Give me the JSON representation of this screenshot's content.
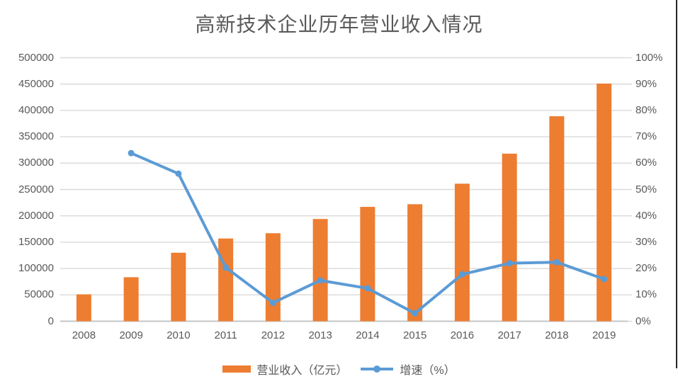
{
  "title": "高新技术企业历年营业收入情况",
  "legend": {
    "revenue_label": "营业收入（亿元）",
    "growth_label": "增速（%）"
  },
  "colors": {
    "bar": "#ED7D31",
    "line": "#5B9BD5",
    "gridline": "#D9D9D9",
    "axis_line": "#C6C6C6",
    "axis_text": "#595959",
    "title_text": "#595959",
    "background": "#FFFFFF",
    "right_border": "#262626"
  },
  "axes": {
    "x_labels": [
      "2008",
      "2009",
      "2010",
      "2011",
      "2012",
      "2013",
      "2014",
      "2015",
      "2016",
      "2017",
      "2018",
      "2019"
    ],
    "left_labels": [
      "0",
      "50000",
      "100000",
      "150000",
      "200000",
      "250000",
      "300000",
      "350000",
      "400000",
      "450000",
      "500000"
    ],
    "right_labels": [
      "0%",
      "10%",
      "20%",
      "30%",
      "40%",
      "50%",
      "60%",
      "70%",
      "80%",
      "90%",
      "100%"
    ]
  },
  "chart_data": {
    "type": "bar",
    "subtype": "bar-line-combo",
    "title": "高新技术企业历年营业收入情况",
    "categories": [
      "2008",
      "2009",
      "2010",
      "2011",
      "2012",
      "2013",
      "2014",
      "2015",
      "2016",
      "2017",
      "2018",
      "2019"
    ],
    "series": [
      {
        "name": "营业收入（亿元）",
        "type": "bar",
        "y_axis": "left",
        "color": "#ED7D31",
        "values": [
          51000,
          83500,
          130000,
          157000,
          167000,
          194000,
          217000,
          222000,
          261000,
          318000,
          389000,
          451000
        ]
      },
      {
        "name": "增速（%）",
        "type": "line",
        "y_axis": "right",
        "color": "#5B9BD5",
        "values": [
          null,
          63.8,
          56,
          20.4,
          7,
          15.5,
          12.5,
          3,
          17.8,
          22,
          22.4,
          16
        ]
      }
    ],
    "left_axis": {
      "min": 0,
      "max": 500000,
      "step": 50000
    },
    "right_axis": {
      "min": 0,
      "max": 100,
      "step": 10,
      "unit": "%"
    },
    "grid": true,
    "legend_position": "bottom"
  }
}
